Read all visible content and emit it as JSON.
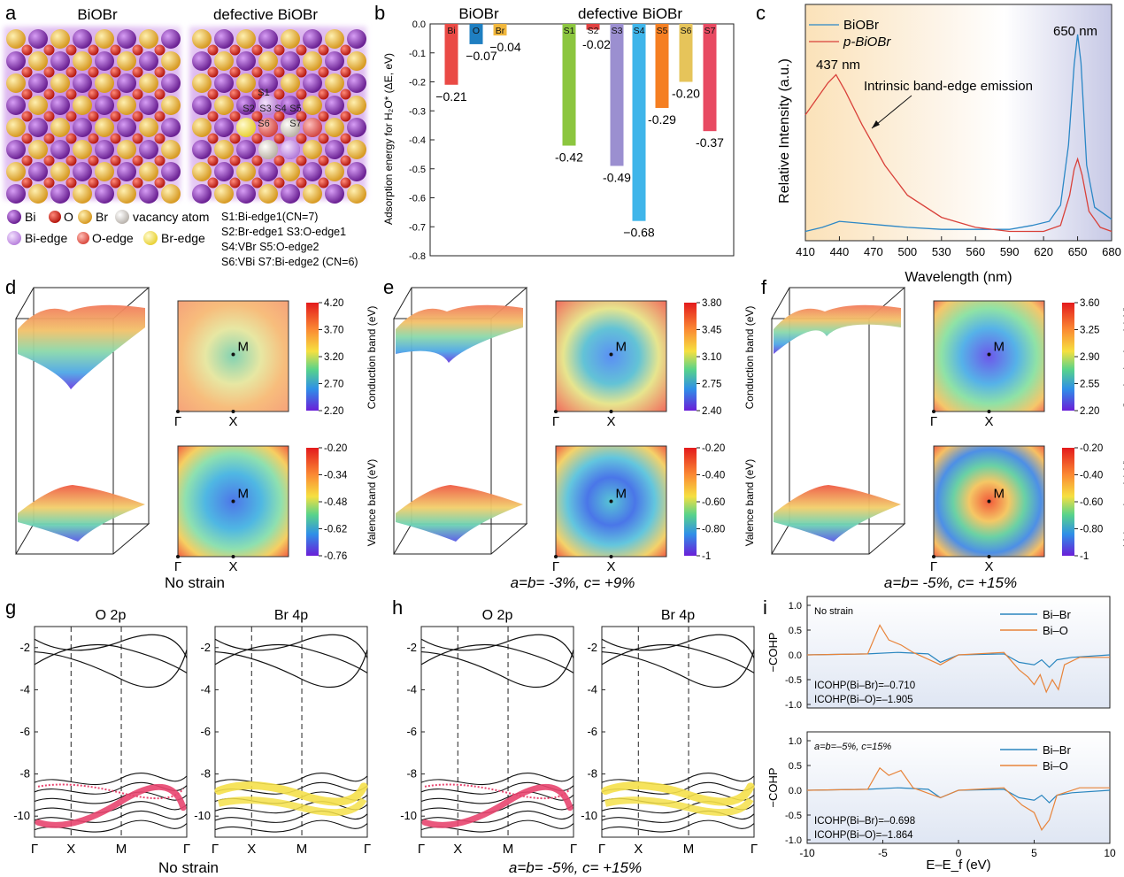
{
  "panels": {
    "a": {
      "letter": "a",
      "title_left": "BiOBr",
      "title_right": "defective BiOBr",
      "legend": [
        "Bi",
        "O",
        "Br",
        "vacancy atom",
        "Bi-edge",
        "O-edge",
        "Br-edge"
      ],
      "sites_note": [
        "S1:Bi-edge1(CN=7)",
        "S2:Br-edge1 S3:O-edge1",
        "S4:VBr S5:O-edge2",
        "S6:VBi S7:Bi-edge2 (CN=6)"
      ],
      "site_labels": [
        "S1",
        "S2",
        "S3",
        "S4",
        "S5",
        "S6",
        "S7"
      ],
      "colors": {
        "Bi": "#7b2fa8",
        "O": "#c8201e",
        "Br": "#e0a832",
        "vacancy": "#cfcac4",
        "Bi_edge": "#cfa2ea",
        "O_edge": "#e66a63",
        "Br_edge": "#f3e25f"
      }
    },
    "b": {
      "letter": "b",
      "group_left": "BiOBr",
      "group_right": "defective  BiOBr",
      "ylabel": "Adsorption energy for H₂O* (ΔE, eV)"
    },
    "c": {
      "letter": "c",
      "ylabel": "Relative Intensity (a.u.)",
      "xlabel": "Wavelength (nm)",
      "legend": [
        "BiOBr",
        "p-BiOBr"
      ],
      "annot_437": "437 nm",
      "annot_650": "650 nm",
      "annot_text": "Intrinsic band-edge emission"
    },
    "def": {
      "letters": [
        "d",
        "e",
        "f"
      ],
      "captions": [
        "No strain",
        "a=b= -3%, c= +9%",
        "a=b= -5%, c= +15%"
      ],
      "point_M": "M",
      "point_G": "Γ",
      "point_X": "X",
      "cb_label": "Conduction band (eV)",
      "vb_label": "Valence band (eV)",
      "cb_ticks": [
        [
          "4.20",
          "3.70",
          "3.20",
          "2.70",
          "2.20"
        ],
        [
          "3.80",
          "3.45",
          "3.10",
          "2.75",
          "2.40"
        ],
        [
          "3.60",
          "3.25",
          "2.90",
          "2.55",
          "2.20"
        ]
      ],
      "vb_ticks": [
        [
          "-0.20",
          "-0.34",
          "-0.48",
          "-0.62",
          "-0.76"
        ],
        [
          "-0.20",
          "-0.40",
          "-0.60",
          "-0.80",
          "-1"
        ],
        [
          "-0.20",
          "-0.40",
          "-0.60",
          "-0.80",
          "-1"
        ]
      ]
    },
    "gh": {
      "letters": [
        "g",
        "h"
      ],
      "sub_titles": [
        "O 2p",
        "Br 4p"
      ],
      "captions": [
        "No strain",
        "a=b= -5%, c= +15%"
      ],
      "yticks": [
        "-2",
        "-4",
        "-6",
        "-8",
        "-10"
      ],
      "kpoints": [
        "Γ",
        "X",
        "M",
        "Γ"
      ],
      "colors": {
        "O": "#e8456f",
        "Br": "#f5e04a"
      }
    },
    "i": {
      "letter": "i",
      "ylabel": "−COHP",
      "xlabel": "E–E_f (eV)",
      "xticks": [
        "-10",
        "-5",
        "0",
        "5",
        "10"
      ],
      "yticks": [
        "1.0",
        "0.5",
        "0.0",
        "-0.5",
        "-1.0"
      ],
      "legend": [
        "Bi–Br",
        "Bi–O"
      ],
      "top_label": "No strain",
      "bottom_label": "a=b=–5%, c=15%",
      "top_icohp": [
        "ICOHP(Bi–Br)=–0.710",
        "ICOHP(Bi–O)=–1.905"
      ],
      "bottom_icohp": [
        "ICOHP(Bi–Br)=–0.698",
        "ICOHP(Bi–O)=–1.864"
      ],
      "colors": {
        "BiBr": "#2a86bf",
        "BiO": "#e8843a"
      }
    }
  },
  "chart_data": [
    {
      "type": "bar",
      "panel": "b",
      "categories": [
        "Bi",
        "O",
        "Br",
        "S1",
        "S2",
        "S3",
        "S4",
        "S5",
        "S6",
        "S7"
      ],
      "values": [
        -0.21,
        -0.07,
        -0.04,
        -0.42,
        -0.02,
        -0.49,
        -0.68,
        -0.29,
        -0.2,
        -0.37
      ],
      "value_labels": [
        "−0.21",
        "−0.07",
        "−0.04",
        "-0.42",
        "-0.02",
        "-0.49",
        "−0.68",
        "-0.29",
        "-0.20",
        "-0.37"
      ],
      "colors": [
        "#ea4a45",
        "#1f7fc1",
        "#f1b73c",
        "#8cc63f",
        "#e14040",
        "#9b8fd0",
        "#3fb5ea",
        "#f57f22",
        "#e6c45a",
        "#e84a62"
      ],
      "ylim": [
        -0.8,
        0
      ],
      "yticks": [
        "0.0",
        "-0.1",
        "-0.2",
        "-0.3",
        "-0.4",
        "-0.5",
        "-0.6",
        "-0.7",
        "-0.8"
      ],
      "ylabel": "Adsorption energy for H₂O* (ΔE, eV)"
    },
    {
      "type": "line",
      "panel": "c",
      "xlabel": "Wavelength (nm)",
      "ylabel": "Relative Intensity (a.u.)",
      "xlim": [
        410,
        680
      ],
      "xticks": [
        "410",
        "440",
        "470",
        "500",
        "530",
        "560",
        "590",
        "620",
        "650",
        "680"
      ],
      "series": [
        {
          "name": "BiOBr",
          "color": "#2b87c6",
          "x": [
            410,
            425,
            440,
            460,
            480,
            500,
            530,
            560,
            590,
            610,
            625,
            635,
            642,
            647,
            650,
            653,
            658,
            665,
            680
          ],
          "y": [
            0.02,
            0.04,
            0.07,
            0.06,
            0.05,
            0.04,
            0.03,
            0.03,
            0.03,
            0.05,
            0.07,
            0.15,
            0.45,
            0.85,
            1.0,
            0.86,
            0.35,
            0.14,
            0.08
          ]
        },
        {
          "name": "p-BiOBr",
          "color": "#d9413a",
          "x": [
            410,
            420,
            430,
            437,
            445,
            460,
            480,
            500,
            530,
            560,
            590,
            620,
            635,
            643,
            647,
            650,
            654,
            660,
            670,
            680
          ],
          "y": [
            0.6,
            0.68,
            0.76,
            0.8,
            0.72,
            0.55,
            0.35,
            0.2,
            0.09,
            0.04,
            0.02,
            0.02,
            0.05,
            0.2,
            0.33,
            0.38,
            0.3,
            0.12,
            0.04,
            0.02
          ]
        }
      ]
    }
  ]
}
